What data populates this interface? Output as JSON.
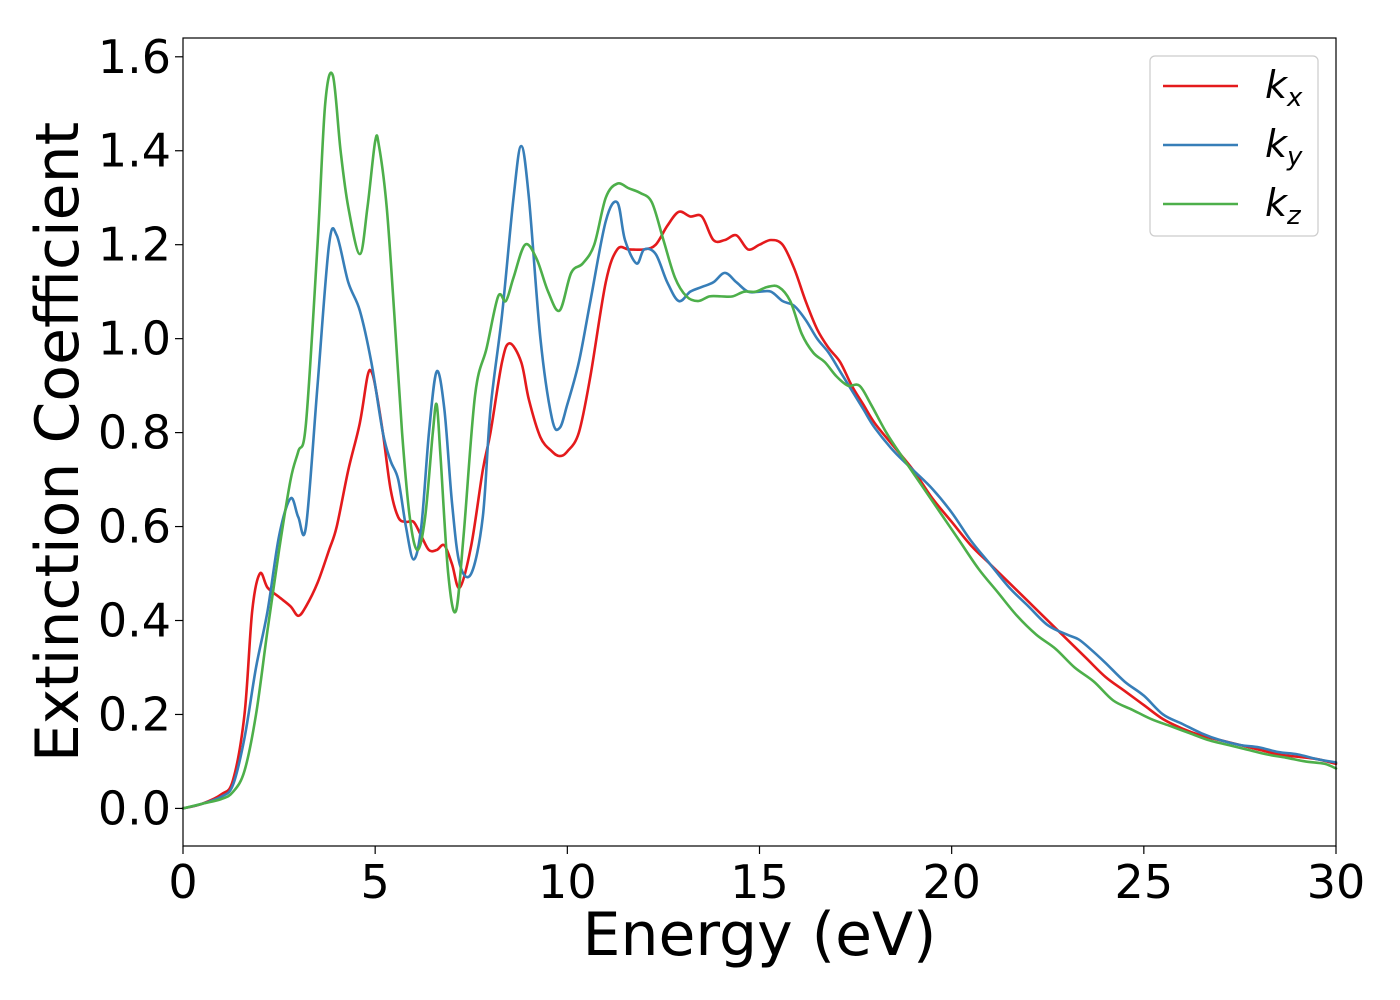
{
  "chart_data": {
    "type": "line",
    "xlabel": "Energy (eV)",
    "ylabel": "Extinction Coefficient",
    "xlim": [
      0,
      30
    ],
    "ylim": [
      -0.08,
      1.64
    ],
    "xticks": [
      "0",
      "5",
      "10",
      "15",
      "20",
      "25",
      "30"
    ],
    "xtick_values": [
      0,
      5,
      10,
      15,
      20,
      25,
      30
    ],
    "yticks": [
      "0.0",
      "0.2",
      "0.4",
      "0.6",
      "0.8",
      "1.0",
      "1.2",
      "1.4",
      "1.6"
    ],
    "ytick_values": [
      0.0,
      0.2,
      0.4,
      0.6,
      0.8,
      1.0,
      1.2,
      1.4,
      1.6
    ],
    "grid": false,
    "legend_position": "top-right",
    "series": [
      {
        "name": "k",
        "subscript": "x",
        "color": "#e41a1c",
        "x": [
          0,
          0.5,
          1.0,
          1.3,
          1.6,
          1.8,
          2.0,
          2.2,
          2.5,
          2.8,
          3.0,
          3.2,
          3.5,
          3.8,
          4.0,
          4.3,
          4.6,
          4.8,
          4.9,
          5.0,
          5.2,
          5.4,
          5.6,
          5.8,
          6.0,
          6.2,
          6.4,
          6.6,
          6.8,
          7.0,
          7.2,
          7.5,
          7.8,
          8.0,
          8.3,
          8.5,
          8.8,
          9.0,
          9.3,
          9.6,
          9.8,
          10.0,
          10.3,
          10.6,
          11.0,
          11.3,
          11.6,
          12.0,
          12.3,
          12.6,
          12.9,
          13.2,
          13.5,
          13.8,
          14.1,
          14.4,
          14.7,
          15.0,
          15.3,
          15.6,
          15.9,
          16.2,
          16.5,
          16.8,
          17.1,
          17.4,
          17.7,
          18.0,
          18.5,
          19.0,
          19.5,
          20.0,
          20.5,
          21.0,
          21.5,
          22.0,
          22.5,
          23.0,
          23.5,
          24.0,
          24.5,
          25.0,
          25.5,
          26.0,
          26.5,
          27.0,
          27.5,
          28.0,
          28.5,
          29.0,
          29.5,
          30.0
        ],
        "values": [
          0.0,
          0.01,
          0.03,
          0.06,
          0.2,
          0.42,
          0.5,
          0.47,
          0.45,
          0.43,
          0.41,
          0.43,
          0.48,
          0.55,
          0.6,
          0.72,
          0.82,
          0.92,
          0.93,
          0.9,
          0.8,
          0.68,
          0.62,
          0.61,
          0.61,
          0.58,
          0.55,
          0.55,
          0.56,
          0.52,
          0.47,
          0.56,
          0.72,
          0.8,
          0.95,
          0.99,
          0.95,
          0.87,
          0.79,
          0.76,
          0.75,
          0.76,
          0.8,
          0.92,
          1.12,
          1.19,
          1.19,
          1.19,
          1.2,
          1.24,
          1.27,
          1.26,
          1.26,
          1.21,
          1.21,
          1.22,
          1.19,
          1.2,
          1.21,
          1.2,
          1.15,
          1.08,
          1.02,
          0.98,
          0.95,
          0.9,
          0.86,
          0.82,
          0.77,
          0.72,
          0.66,
          0.61,
          0.56,
          0.52,
          0.48,
          0.44,
          0.4,
          0.36,
          0.32,
          0.28,
          0.25,
          0.22,
          0.19,
          0.17,
          0.155,
          0.145,
          0.135,
          0.125,
          0.115,
          0.11,
          0.105,
          0.095
        ]
      },
      {
        "name": "k",
        "subscript": "y",
        "color": "#377eb8",
        "x": [
          0,
          0.5,
          1.0,
          1.3,
          1.6,
          1.9,
          2.2,
          2.5,
          2.8,
          3.0,
          3.2,
          3.5,
          3.8,
          4.0,
          4.3,
          4.6,
          4.9,
          5.2,
          5.4,
          5.6,
          5.8,
          6.0,
          6.2,
          6.4,
          6.6,
          6.8,
          7.0,
          7.2,
          7.5,
          7.8,
          8.0,
          8.3,
          8.6,
          8.8,
          9.0,
          9.3,
          9.6,
          9.8,
          10.0,
          10.3,
          10.6,
          11.0,
          11.3,
          11.5,
          11.8,
          12.0,
          12.3,
          12.6,
          12.9,
          13.2,
          13.5,
          13.8,
          14.1,
          14.4,
          14.7,
          15.0,
          15.3,
          15.6,
          15.9,
          16.2,
          16.5,
          16.8,
          17.1,
          17.4,
          17.7,
          18.0,
          18.5,
          19.0,
          19.5,
          20.0,
          20.5,
          21.0,
          21.5,
          22.0,
          22.5,
          23.0,
          23.3,
          23.6,
          24.0,
          24.5,
          25.0,
          25.5,
          26.0,
          26.5,
          27.0,
          27.5,
          28.0,
          28.5,
          29.0,
          29.5,
          30.0
        ],
        "values": [
          0.0,
          0.01,
          0.025,
          0.05,
          0.15,
          0.3,
          0.42,
          0.58,
          0.66,
          0.62,
          0.6,
          0.9,
          1.2,
          1.22,
          1.12,
          1.06,
          0.95,
          0.8,
          0.74,
          0.7,
          0.6,
          0.53,
          0.6,
          0.8,
          0.93,
          0.85,
          0.65,
          0.52,
          0.5,
          0.62,
          0.85,
          1.05,
          1.3,
          1.41,
          1.3,
          1.0,
          0.83,
          0.81,
          0.86,
          0.95,
          1.08,
          1.25,
          1.29,
          1.21,
          1.16,
          1.19,
          1.18,
          1.12,
          1.08,
          1.1,
          1.11,
          1.12,
          1.14,
          1.12,
          1.1,
          1.1,
          1.1,
          1.08,
          1.07,
          1.04,
          1.0,
          0.97,
          0.93,
          0.89,
          0.85,
          0.81,
          0.76,
          0.72,
          0.68,
          0.63,
          0.57,
          0.52,
          0.47,
          0.43,
          0.39,
          0.37,
          0.36,
          0.34,
          0.31,
          0.27,
          0.24,
          0.2,
          0.18,
          0.16,
          0.145,
          0.135,
          0.13,
          0.12,
          0.115,
          0.105,
          0.098
        ]
      },
      {
        "name": "k",
        "subscript": "z",
        "color": "#4daf4a",
        "x": [
          0,
          0.5,
          1.0,
          1.3,
          1.6,
          1.9,
          2.2,
          2.5,
          2.8,
          3.0,
          3.2,
          3.5,
          3.7,
          3.9,
          4.1,
          4.3,
          4.6,
          4.8,
          5.0,
          5.1,
          5.3,
          5.5,
          5.7,
          5.9,
          6.1,
          6.3,
          6.5,
          6.6,
          6.7,
          6.9,
          7.1,
          7.3,
          7.6,
          7.9,
          8.2,
          8.4,
          8.6,
          8.9,
          9.2,
          9.5,
          9.8,
          10.1,
          10.4,
          10.7,
          11.0,
          11.3,
          11.6,
          11.9,
          12.2,
          12.5,
          12.8,
          13.1,
          13.4,
          13.7,
          14.0,
          14.3,
          14.6,
          14.9,
          15.2,
          15.5,
          15.8,
          16.1,
          16.4,
          16.7,
          17.0,
          17.3,
          17.6,
          17.9,
          18.3,
          18.7,
          19.2,
          19.7,
          20.2,
          20.7,
          21.2,
          21.7,
          22.2,
          22.7,
          23.2,
          23.7,
          24.2,
          24.7,
          25.2,
          25.7,
          26.2,
          26.7,
          27.2,
          27.7,
          28.2,
          28.7,
          29.2,
          29.7,
          30.0
        ],
        "values": [
          0.0,
          0.01,
          0.02,
          0.035,
          0.08,
          0.2,
          0.38,
          0.55,
          0.7,
          0.76,
          0.82,
          1.2,
          1.5,
          1.56,
          1.4,
          1.28,
          1.18,
          1.28,
          1.42,
          1.41,
          1.28,
          1.05,
          0.8,
          0.62,
          0.55,
          0.62,
          0.8,
          0.86,
          0.75,
          0.5,
          0.42,
          0.58,
          0.88,
          0.98,
          1.09,
          1.08,
          1.13,
          1.2,
          1.17,
          1.1,
          1.06,
          1.14,
          1.16,
          1.2,
          1.3,
          1.33,
          1.32,
          1.31,
          1.29,
          1.21,
          1.13,
          1.09,
          1.08,
          1.09,
          1.09,
          1.09,
          1.1,
          1.1,
          1.11,
          1.11,
          1.08,
          1.01,
          0.97,
          0.95,
          0.92,
          0.9,
          0.9,
          0.86,
          0.8,
          0.75,
          0.69,
          0.63,
          0.57,
          0.51,
          0.46,
          0.41,
          0.37,
          0.34,
          0.3,
          0.27,
          0.23,
          0.21,
          0.19,
          0.175,
          0.16,
          0.145,
          0.135,
          0.125,
          0.115,
          0.108,
          0.1,
          0.095,
          0.085
        ]
      }
    ]
  }
}
